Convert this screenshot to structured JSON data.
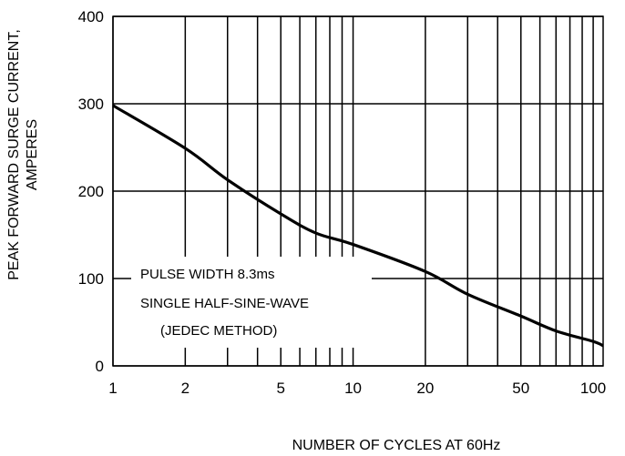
{
  "chart_data": {
    "type": "line",
    "title": "",
    "xlabel": "NUMBER OF CYCLES AT 60Hz",
    "ylabel_lines": [
      "PEAK FORWARD SURGE CURRENT,",
      "AMPERES"
    ],
    "x_scale": "log",
    "xlim": [
      1,
      110
    ],
    "ylim": [
      0,
      400
    ],
    "x_ticks": [
      1,
      2,
      5,
      10,
      20,
      50,
      100
    ],
    "x_tick_labels": [
      "1",
      "2",
      "5",
      "10",
      "20",
      "50",
      "100"
    ],
    "x_gridlines": [
      1,
      2,
      3,
      4,
      5,
      6,
      7,
      8,
      9,
      10,
      20,
      30,
      40,
      50,
      60,
      70,
      80,
      90,
      100
    ],
    "y_ticks": [
      0,
      100,
      200,
      300,
      400
    ],
    "y_tick_labels": [
      "0",
      "100",
      "200",
      "300",
      "400"
    ],
    "grid": true,
    "series": [
      {
        "color": "#000000",
        "x": [
          1,
          2,
          3,
          5,
          7,
          10,
          20,
          30,
          50,
          70,
          100,
          110
        ],
        "y": [
          298,
          249,
          213,
          174,
          152,
          139,
          108,
          82,
          57,
          40,
          28,
          23
        ]
      }
    ],
    "annotation": {
      "lines": [
        "PULSE WIDTH 8.3ms",
        "SINGLE HALF-SINE-WAVE",
        "(JEDEC METHOD)"
      ]
    }
  }
}
